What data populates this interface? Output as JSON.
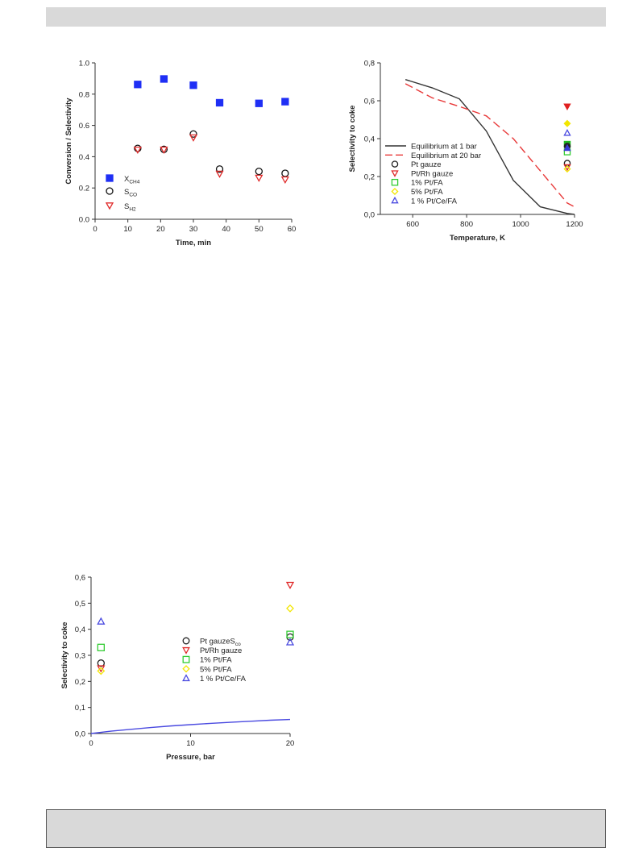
{
  "chart_data": [
    {
      "type": "scatter",
      "xlabel": "Time, min",
      "ylabel": "Conversion / Selectivity",
      "xlim": [
        0,
        60
      ],
      "ylim": [
        0,
        1.0
      ],
      "x_ticks": [
        "0",
        "10",
        "20",
        "30",
        "40",
        "50",
        "60"
      ],
      "y_ticks": [
        "0.0",
        "0.2",
        "0.4",
        "0.6",
        "0.8",
        "1.0"
      ],
      "series": [
        {
          "name": "X",
          "name_sub": "CH4",
          "marker": "square-filled",
          "color": "#1f2ff5",
          "x": [
            13,
            21,
            30,
            38,
            50,
            58
          ],
          "y": [
            0.862,
            0.897,
            0.857,
            0.745,
            0.741,
            0.752
          ]
        },
        {
          "name": "S",
          "name_sub": "CO",
          "marker": "circle-open",
          "color": "#111111",
          "x": [
            13,
            21,
            30,
            38,
            50,
            58
          ],
          "y": [
            0.453,
            0.447,
            0.545,
            0.321,
            0.306,
            0.294
          ]
        },
        {
          "name": "S",
          "name_sub": "H2",
          "marker": "triangle-down-open",
          "color": "#e02a2a",
          "x": [
            13,
            21,
            30,
            38,
            50,
            58
          ],
          "y": [
            0.445,
            0.445,
            0.523,
            0.291,
            0.265,
            0.254
          ]
        }
      ],
      "legend": "lower-left"
    },
    {
      "type": "line",
      "xlabel": "Temperature, K",
      "ylabel": "Selectivity to coke",
      "xlim": [
        480,
        1200
      ],
      "ylim": [
        0,
        0.8
      ],
      "x_ticks": [
        "600",
        "800",
        "1000",
        "1200"
      ],
      "y_ticks": [
        "0,0",
        "0,2",
        "0,4",
        "0,6",
        "0,8"
      ],
      "series": [
        {
          "name": "Equilibrium at 1 bar",
          "style": "solid",
          "color": "#333333",
          "x": [
            573,
            673,
            773,
            873,
            973,
            1073,
            1173,
            1200
          ],
          "y": [
            0.712,
            0.668,
            0.61,
            0.44,
            0.18,
            0.04,
            0.005,
            0.0
          ]
        },
        {
          "name": "Equilibrium at 20 bar",
          "style": "dashed",
          "color": "#e83a3a",
          "x": [
            573,
            673,
            773,
            873,
            973,
            1073,
            1173,
            1200
          ],
          "y": [
            0.69,
            0.615,
            0.57,
            0.52,
            0.4,
            0.23,
            0.06,
            0.04
          ]
        },
        {
          "name": "Pt gauze",
          "marker": "circle-open",
          "color": "#222222",
          "x": [
            1173
          ],
          "y": [
            0.27
          ]
        },
        {
          "name": "Pt/Rh gauze",
          "marker": "triangle-down-open",
          "color": "#e02a2a",
          "x": [
            1173
          ],
          "y": [
            0.25
          ]
        },
        {
          "name": "1% Pt/FA",
          "marker": "square-open",
          "color": "#33cc33",
          "x": [
            1173
          ],
          "y": [
            0.33
          ]
        },
        {
          "name": "5% Pt/FA",
          "marker": "diamond-open",
          "color": "#f2e600",
          "x": [
            1173
          ],
          "y": [
            0.24
          ]
        },
        {
          "name": "1 % Pt/Ce/FA",
          "marker": "triangle-up-open",
          "color": "#4a4ae0",
          "x": [
            1173
          ],
          "y": [
            0.43
          ]
        }
      ],
      "extra_points": [
        {
          "marker": "triangle-down-filled",
          "color": "#e02020",
          "x": 1173,
          "y": 0.57
        },
        {
          "marker": "diamond-filled",
          "color": "#f2e600",
          "x": 1173,
          "y": 0.48
        },
        {
          "marker": "square-filled",
          "color": "#22bb22",
          "x": 1173,
          "y": 0.37
        },
        {
          "marker": "circle-filled",
          "color": "#222222",
          "x": 1173,
          "y": 0.36
        },
        {
          "marker": "triangle-up-filled",
          "color": "#3a3ad8",
          "x": 1173,
          "y": 0.35
        }
      ],
      "legend": "lower-left"
    },
    {
      "type": "scatter",
      "xlabel": "Pressure, bar",
      "ylabel": "Selectivity to coke",
      "xlim": [
        0,
        20
      ],
      "ylim": [
        0,
        0.6
      ],
      "x_ticks": [
        "0",
        "10",
        "20"
      ],
      "y_ticks": [
        "0,0",
        "0,1",
        "0,2",
        "0,3",
        "0,4",
        "0,5",
        "0,6"
      ],
      "series": [
        {
          "name": "Pt gauze",
          "name_suffix": "S",
          "name_suffix_sub": "co",
          "marker": "circle-open",
          "color": "#222222",
          "x": [
            1,
            20
          ],
          "y": [
            0.27,
            0.37
          ]
        },
        {
          "name": "Pt/Rh gauze",
          "marker": "triangle-down-open",
          "color": "#e02a2a",
          "x": [
            1,
            20
          ],
          "y": [
            0.25,
            0.57
          ]
        },
        {
          "name": "1% Pt/FA",
          "marker": "square-open",
          "color": "#33cc33",
          "x": [
            1,
            20
          ],
          "y": [
            0.33,
            0.38
          ]
        },
        {
          "name": "5% Pt/FA",
          "marker": "diamond-open",
          "color": "#f2e600",
          "x": [
            1,
            20
          ],
          "y": [
            0.24,
            0.48
          ]
        },
        {
          "name": "1 % Pt/Ce/FA",
          "marker": "triangle-up-open",
          "color": "#4a4ae0",
          "x": [
            1,
            20
          ],
          "y": [
            0.43,
            0.35
          ]
        }
      ],
      "curve": {
        "color": "#4a4ae0",
        "x": [
          0,
          2,
          4,
          6,
          8,
          10,
          12,
          14,
          16,
          18,
          20
        ],
        "y": [
          0.0,
          0.009,
          0.016,
          0.023,
          0.029,
          0.034,
          0.039,
          0.043,
          0.047,
          0.051,
          0.054
        ]
      },
      "legend": "center-right"
    }
  ]
}
